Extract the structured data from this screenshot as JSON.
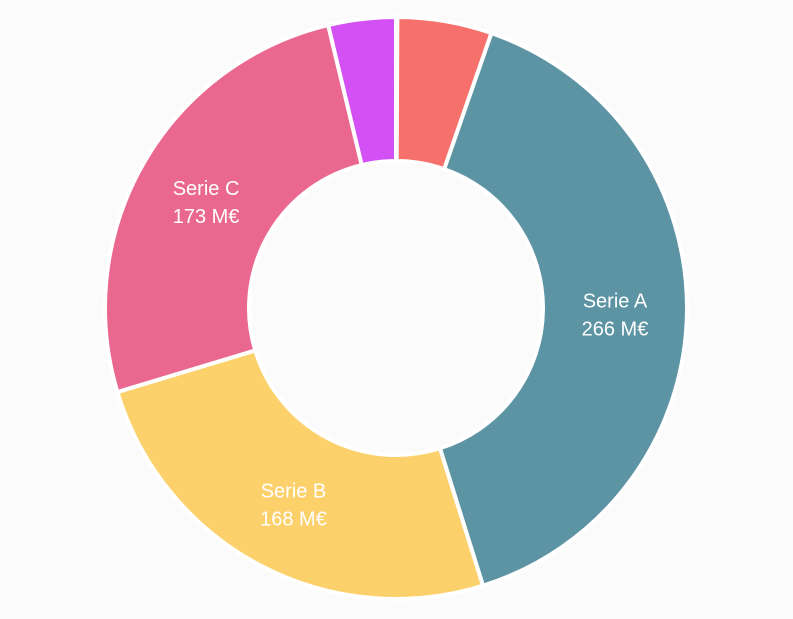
{
  "chart_data": {
    "type": "pie",
    "subtype": "donut",
    "unit": "M€",
    "slices": [
      {
        "name": "",
        "value": 0.5,
        "color": "#2c3e66",
        "label_visible": false
      },
      {
        "name": "",
        "value": 35,
        "color": "#f7716c",
        "label_visible": false
      },
      {
        "name": "Serie A",
        "value": 266,
        "value_label": "266 M€",
        "color": "#5c94a4",
        "label_visible": true
      },
      {
        "name": "Serie B",
        "value": 168,
        "value_label": "168 M€",
        "color": "#fcd16b",
        "label_visible": true
      },
      {
        "name": "Serie C",
        "value": 173,
        "value_label": "173 M€",
        "color": "#ea6890",
        "label_visible": true
      },
      {
        "name": "",
        "value": 25,
        "color": "#d350f4",
        "label_visible": false
      }
    ]
  }
}
